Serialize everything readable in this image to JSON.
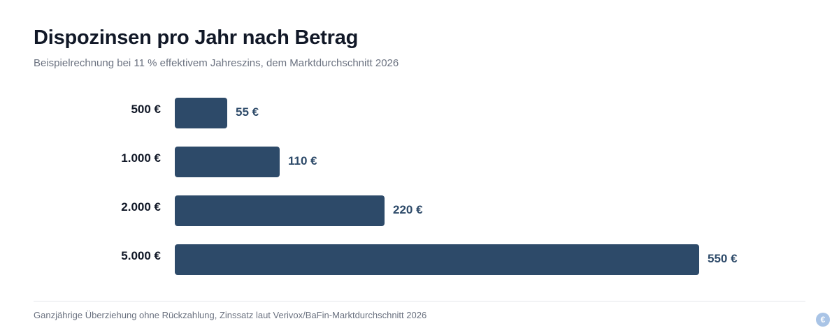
{
  "chart_data": {
    "type": "bar",
    "orientation": "horizontal",
    "title": "Dispozinsen pro Jahr nach Betrag",
    "subtitle": "Beispielrechnung bei 11 % effektivem Jahreszins, dem Marktdurchschnitt 2026",
    "categories": [
      "500 €",
      "1.000 €",
      "2.000 €",
      "5.000 €"
    ],
    "values": [
      55,
      110,
      220,
      550
    ],
    "value_labels": [
      "55 €",
      "110 €",
      "220 €",
      "550 €"
    ],
    "xlim": [
      0,
      550
    ],
    "grid": false,
    "legend": "none",
    "bar_color": "#2d4a69",
    "footnote": "Ganzjährige Überziehung ohne Rückzahlung, Zinssatz laut Verivox/BaFin-Marktdurchschnitt 2026"
  },
  "badge": {
    "icon": "euro-icon",
    "glyph": "€",
    "color": "#a9c4e6"
  }
}
